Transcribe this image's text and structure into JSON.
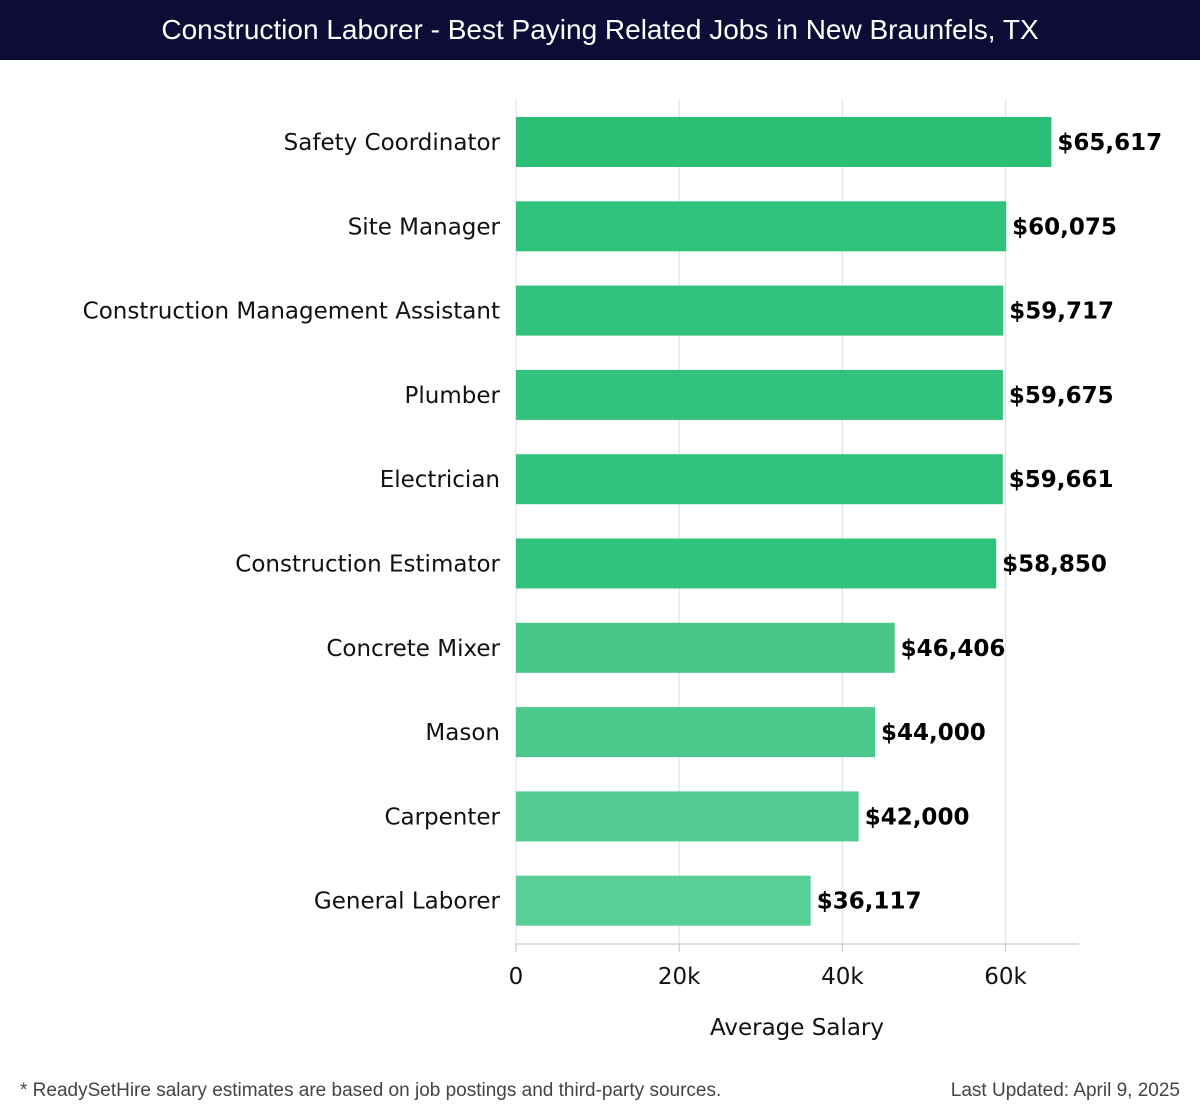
{
  "header": {
    "title": "Construction Laborer - Best Paying Related Jobs in New Braunfels, TX"
  },
  "chart_data": {
    "type": "bar",
    "orientation": "horizontal",
    "title": "Construction Laborer - Best Paying Related Jobs in New Braunfels, TX",
    "categories": [
      "Safety Coordinator",
      "Site Manager",
      "Construction Management Assistant",
      "Plumber",
      "Electrician",
      "Construction Estimator",
      "Concrete Mixer",
      "Mason",
      "Carpenter",
      "General Laborer"
    ],
    "values": [
      65617,
      60075,
      59717,
      59675,
      59661,
      58850,
      46406,
      44000,
      42000,
      36117
    ],
    "value_labels": [
      "$65,617",
      "$60,075",
      "$59,717",
      "$59,675",
      "$59,661",
      "$58,850",
      "$46,406",
      "$44,000",
      "$42,000",
      "$36,117"
    ],
    "xlabel": "Average Salary",
    "ylabel": "",
    "xlim": [
      0,
      69000
    ],
    "xticks": [
      0,
      20000,
      40000,
      60000
    ],
    "xtick_labels": [
      "0",
      "20k",
      "40k",
      "60k"
    ],
    "grid": true,
    "bar_colors": [
      "#2bbf75",
      "#2ec27a",
      "#31c27c",
      "#31c27c",
      "#31c27c",
      "#31c27c",
      "#46c687",
      "#4bc98b",
      "#51cb8f",
      "#58cf97"
    ]
  },
  "footer": {
    "note": "* ReadySetHire salary estimates are based on job postings and third-party sources.",
    "updated": "Last Updated: April 9, 2025"
  }
}
